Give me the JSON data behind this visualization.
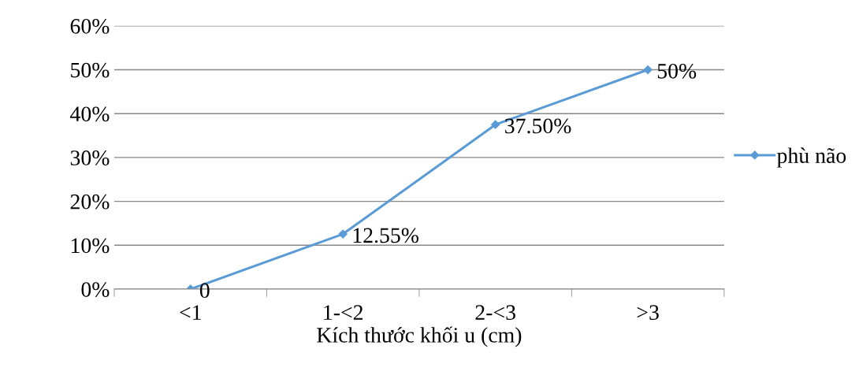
{
  "chart_data": {
    "type": "line",
    "xlabel": "Kích thước khối u (cm)",
    "categories": [
      "<1",
      "1-<2",
      "2-<3",
      ">3"
    ],
    "series": [
      {
        "name": "phù não",
        "color": "#5b9bd5",
        "values": [
          0,
          12.55,
          37.5,
          50
        ],
        "value_labels": [
          "0",
          "12.55%",
          "37.50%",
          "50%"
        ]
      }
    ],
    "ylim": [
      0,
      60
    ],
    "yticks": [
      {
        "value": 0,
        "label": "0%"
      },
      {
        "value": 10,
        "label": "10%"
      },
      {
        "value": 20,
        "label": "20%"
      },
      {
        "value": 30,
        "label": "30%"
      },
      {
        "value": 40,
        "label": "40%"
      },
      {
        "value": 50,
        "label": "50%"
      },
      {
        "value": 60,
        "label": "60%"
      }
    ],
    "grid": "y",
    "legend": "right",
    "marker": "diamond",
    "line_style": "solid"
  }
}
